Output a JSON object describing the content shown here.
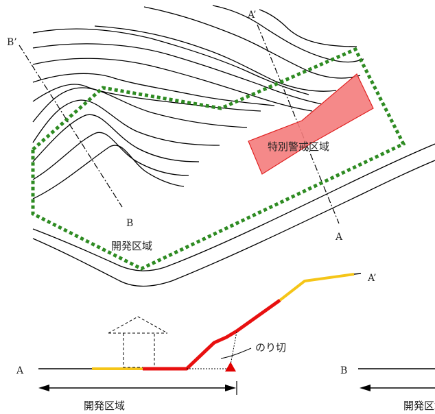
{
  "plan_view": {
    "section_a_start": "A",
    "section_a_end": "A’",
    "section_b_start": "B",
    "section_b_end": "B’",
    "development_area_label": "開発区域",
    "special_warning_zone_label": "特別警戒区域"
  },
  "section_a": {
    "start_label": "A",
    "end_label": "A’",
    "cut_slope_label": "のり切",
    "development_area_label": "開発区域"
  },
  "section_b": {
    "start_label": "B",
    "development_area_label": "開発区域"
  },
  "colors": {
    "development_boundary": "#2e8b22",
    "special_warning_zone_fill": "#f47c7c",
    "special_warning_zone_stroke": "#e02020",
    "red_slope": "#e81010",
    "yellow_slope": "#f5c518",
    "cut_marker": "#e00000"
  }
}
